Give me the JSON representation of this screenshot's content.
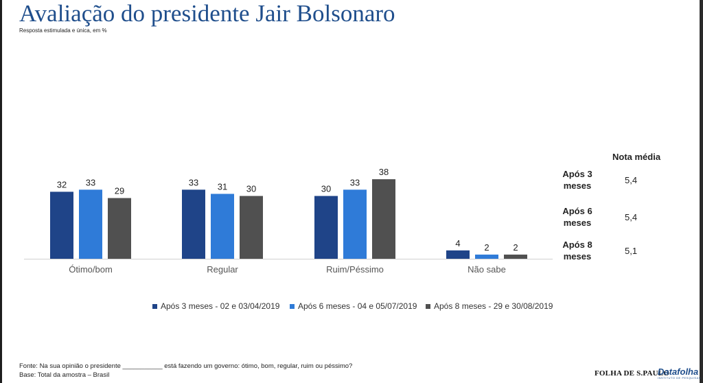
{
  "page": {
    "title": "Avaliação do presidente Jair Bolsonaro",
    "subtitle": "Resposta estimulada e única, em %"
  },
  "chart_data": {
    "type": "bar",
    "categories": [
      "Ótimo/bom",
      "Regular",
      "Ruim/Péssimo",
      "Não sabe"
    ],
    "series": [
      {
        "name": "Após 3 meses - 02 e 03/04/2019",
        "color": "#1f4488",
        "values": [
          32,
          33,
          30,
          4
        ]
      },
      {
        "name": "Após 6 meses - 04 e 05/07/2019",
        "color": "#2f7bd8",
        "values": [
          33,
          31,
          33,
          2
        ]
      },
      {
        "name": "Após 8 meses - 29 e 30/08/2019",
        "color": "#505050",
        "values": [
          29,
          30,
          38,
          2
        ]
      }
    ],
    "ylim": [
      0,
      38
    ],
    "legend": "bottom",
    "grid": false
  },
  "nota_media": {
    "title": "Nota média",
    "rows": [
      {
        "label_line1": "Após 3",
        "label_line2": "meses",
        "value": "5,4"
      },
      {
        "label_line1": "Após 6",
        "label_line2": "meses",
        "value": "5,4"
      },
      {
        "label_line1": "Após 8",
        "label_line2": "meses",
        "value": "5,1"
      }
    ]
  },
  "footer": {
    "fonte": "Fonte: Na sua opinião o presidente ___________ está fazendo um governo: ótimo, bom, regular, ruim ou péssimo?",
    "base": "Base: Total da amostra – Brasil"
  },
  "logos": {
    "folha": "FOLHA DE S.PAULO",
    "datafolha": "Datafolha",
    "datafolha_sub": "INSTITUTO DE PESQUISAS"
  }
}
